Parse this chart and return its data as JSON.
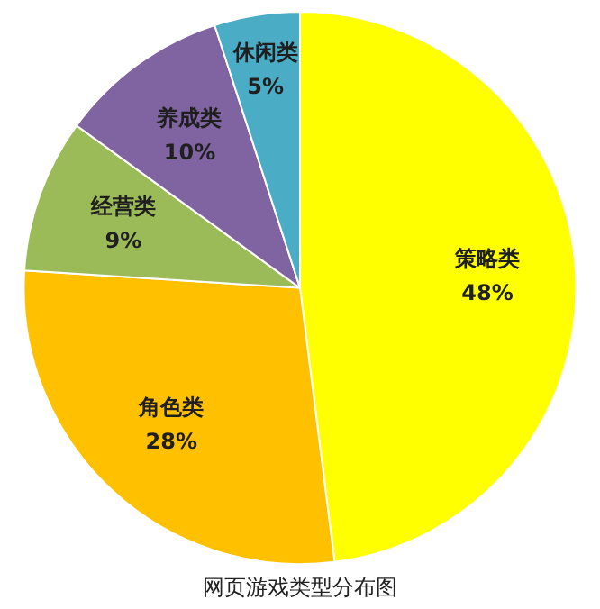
{
  "chart_data": {
    "type": "pie",
    "title": "网页游戏类型分布图",
    "categories": [
      "策略类",
      "角色类",
      "经营类",
      "养成类",
      "休闲类"
    ],
    "values": [
      48,
      28,
      9,
      10,
      5
    ],
    "colors": [
      "#ffff00",
      "#ffc000",
      "#9bbb59",
      "#8064a2",
      "#4bacc6"
    ],
    "value_labels": [
      "48%",
      "28%",
      "9%",
      "10%",
      "5%"
    ],
    "legend": false
  }
}
